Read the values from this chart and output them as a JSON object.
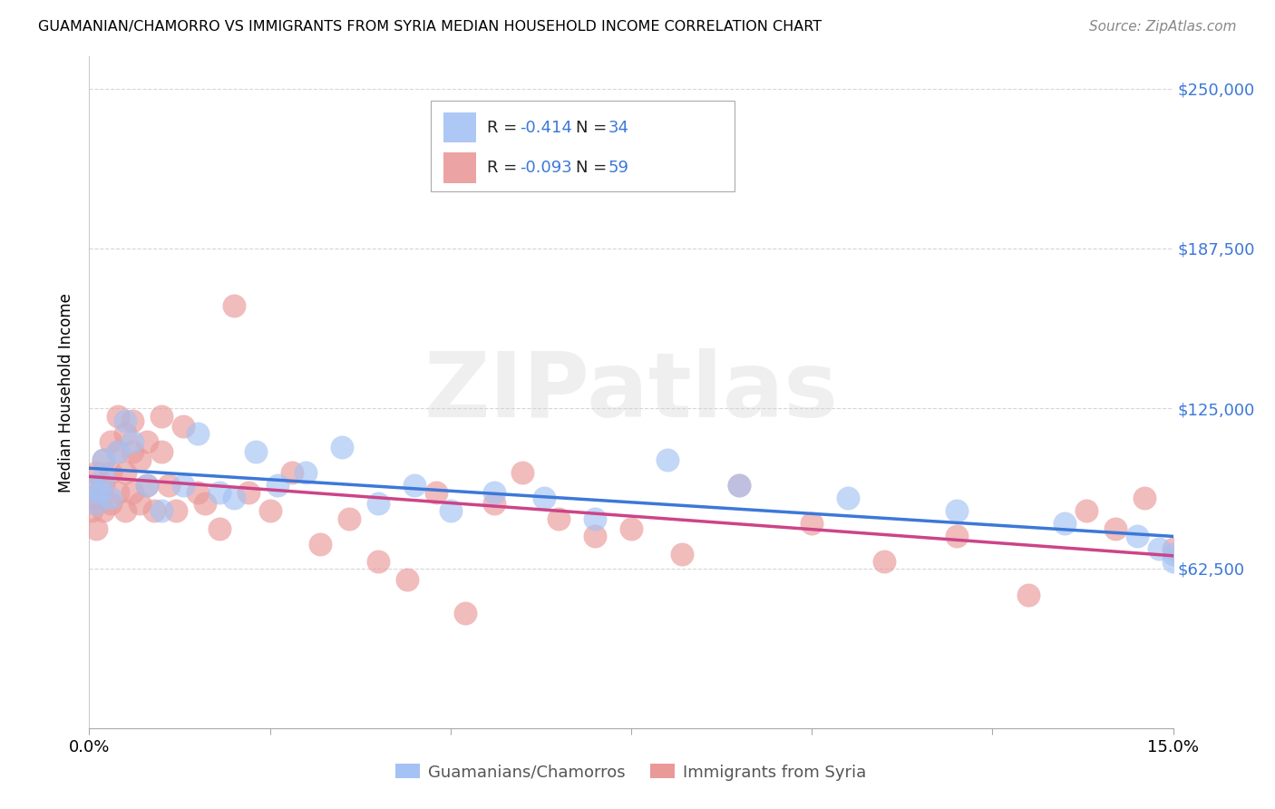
{
  "title": "GUAMANIAN/CHAMORRO VS IMMIGRANTS FROM SYRIA MEDIAN HOUSEHOLD INCOME CORRELATION CHART",
  "source": "Source: ZipAtlas.com",
  "ylabel": "Median Household Income",
  "y_ticks": [
    0,
    62500,
    125000,
    187500,
    250000
  ],
  "y_tick_labels": [
    "",
    "$62,500",
    "$125,000",
    "$187,500",
    "$250,000"
  ],
  "xlim": [
    0.0,
    0.15
  ],
  "ylim": [
    0,
    262500
  ],
  "watermark": "ZIPatlas",
  "legend_blue_r_val": "-0.414",
  "legend_blue_n_val": "34",
  "legend_pink_r_val": "-0.093",
  "legend_pink_n_val": "59",
  "legend_label_blue": "Guamanians/Chamorros",
  "legend_label_pink": "Immigrants from Syria",
  "blue_color": "#a4c2f4",
  "pink_color": "#ea9999",
  "blue_line_color": "#3c78d8",
  "pink_line_color": "#cc4488",
  "text_blue": "#3c78d8",
  "blue_scatter_x": [
    0.0005,
    0.001,
    0.0015,
    0.002,
    0.002,
    0.003,
    0.004,
    0.005,
    0.006,
    0.008,
    0.01,
    0.013,
    0.015,
    0.018,
    0.02,
    0.023,
    0.026,
    0.03,
    0.035,
    0.04,
    0.045,
    0.05,
    0.056,
    0.063,
    0.07,
    0.08,
    0.09,
    0.105,
    0.12,
    0.135,
    0.145,
    0.148,
    0.15,
    0.15
  ],
  "blue_scatter_y": [
    95000,
    88000,
    92000,
    105000,
    98000,
    90000,
    108000,
    120000,
    112000,
    95000,
    85000,
    95000,
    115000,
    92000,
    90000,
    108000,
    95000,
    100000,
    110000,
    88000,
    95000,
    85000,
    92000,
    90000,
    82000,
    105000,
    95000,
    90000,
    85000,
    80000,
    75000,
    70000,
    68000,
    65000
  ],
  "pink_scatter_x": [
    0.0002,
    0.0003,
    0.0005,
    0.001,
    0.001,
    0.001,
    0.002,
    0.002,
    0.002,
    0.003,
    0.003,
    0.003,
    0.004,
    0.004,
    0.004,
    0.005,
    0.005,
    0.005,
    0.006,
    0.006,
    0.006,
    0.007,
    0.007,
    0.008,
    0.008,
    0.009,
    0.01,
    0.01,
    0.011,
    0.012,
    0.013,
    0.015,
    0.016,
    0.018,
    0.02,
    0.022,
    0.025,
    0.028,
    0.032,
    0.036,
    0.04,
    0.044,
    0.048,
    0.052,
    0.056,
    0.06,
    0.065,
    0.07,
    0.075,
    0.082,
    0.09,
    0.1,
    0.11,
    0.12,
    0.13,
    0.138,
    0.142,
    0.146,
    0.15
  ],
  "pink_scatter_y": [
    90000,
    85000,
    95000,
    100000,
    88000,
    78000,
    105000,
    95000,
    85000,
    112000,
    100000,
    88000,
    122000,
    108000,
    92000,
    115000,
    100000,
    85000,
    120000,
    108000,
    92000,
    105000,
    88000,
    112000,
    95000,
    85000,
    122000,
    108000,
    95000,
    85000,
    118000,
    92000,
    88000,
    78000,
    165000,
    92000,
    85000,
    100000,
    72000,
    82000,
    65000,
    58000,
    92000,
    45000,
    88000,
    100000,
    82000,
    75000,
    78000,
    68000,
    95000,
    80000,
    65000,
    75000,
    52000,
    85000,
    78000,
    90000,
    70000
  ]
}
